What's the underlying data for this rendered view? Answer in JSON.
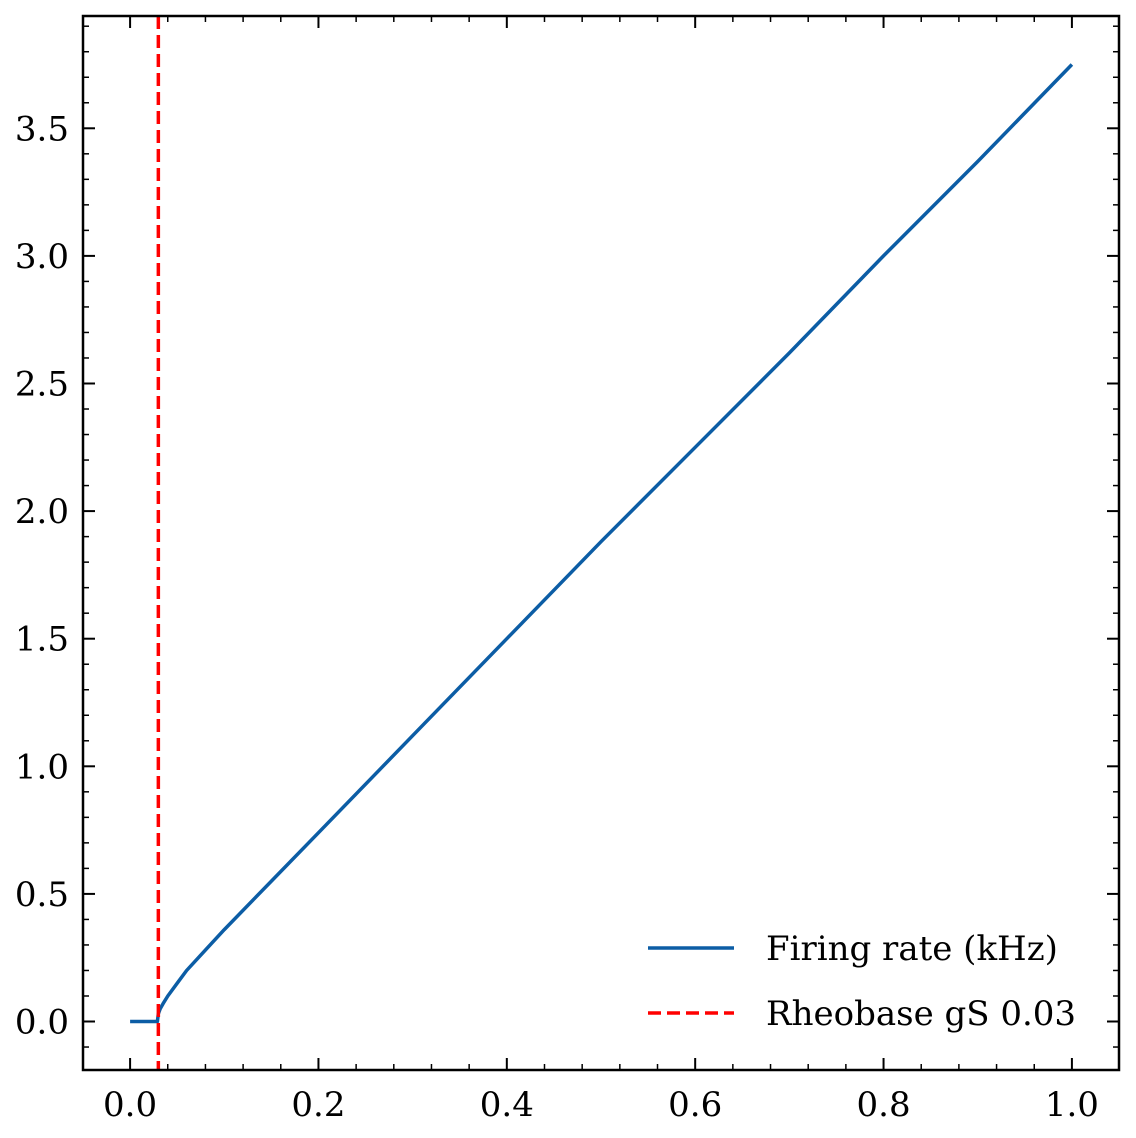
{
  "chart_data": {
    "type": "line",
    "title": "",
    "xlabel": "",
    "ylabel": "",
    "xlim": [
      -0.05,
      1.05
    ],
    "ylim": [
      -0.19,
      3.94
    ],
    "x_ticks": [
      0.0,
      0.2,
      0.4,
      0.6,
      0.8,
      1.0
    ],
    "x_tick_labels": [
      "0.0",
      "0.2",
      "0.4",
      "0.6",
      "0.8",
      "1.0"
    ],
    "y_ticks": [
      0.0,
      0.5,
      1.0,
      1.5,
      2.0,
      2.5,
      3.0,
      3.5
    ],
    "y_tick_labels": [
      "0.0",
      "0.5",
      "1.0",
      "1.5",
      "2.0",
      "2.5",
      "3.0",
      "3.5"
    ],
    "grid": false,
    "legend_position": "lower-right",
    "series": [
      {
        "name": "Firing rate (kHz)",
        "color": "#0c5da5",
        "style": "solid",
        "x": [
          0.0,
          0.01,
          0.02,
          0.029,
          0.03,
          0.032,
          0.035,
          0.04,
          0.05,
          0.06,
          0.08,
          0.1,
          0.15,
          0.2,
          0.3,
          0.4,
          0.5,
          0.6,
          0.7,
          0.8,
          0.9,
          1.0
        ],
        "y": [
          0.0,
          0.0,
          0.0,
          0.0,
          0.03,
          0.05,
          0.07,
          0.1,
          0.15,
          0.2,
          0.28,
          0.36,
          0.55,
          0.74,
          1.12,
          1.5,
          1.88,
          2.25,
          2.62,
          3.0,
          3.37,
          3.75
        ]
      },
      {
        "name": "Rheobase gS 0.03",
        "color": "#ff0000",
        "style": "dashed",
        "vline_x": 0.03
      }
    ]
  }
}
